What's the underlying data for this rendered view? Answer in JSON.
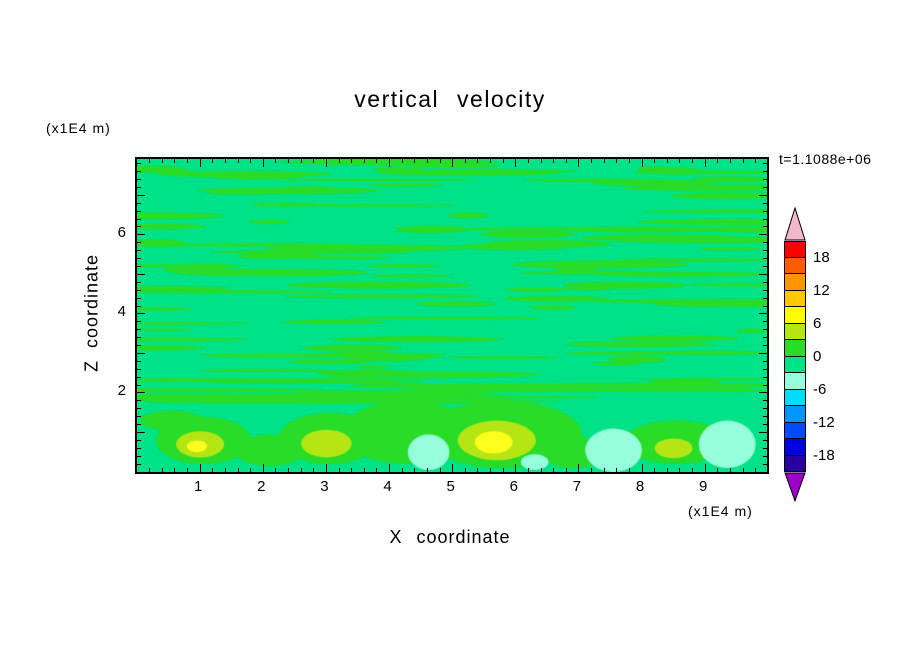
{
  "chart_data": {
    "type": "contour",
    "title": "vertical velocity",
    "annotation": "t=1.1088e+06",
    "xlabel": "X coordinate",
    "x_unit": "(x1E4 m)",
    "ylabel": "Z coordinate",
    "y_unit": "(x1E4 m)",
    "xlim": [
      0,
      9.98
    ],
    "ylim": [
      0,
      7.92
    ],
    "x_major_ticks": [
      1,
      2,
      3,
      4,
      5,
      6,
      7,
      8,
      9
    ],
    "x_tick_labels": [
      "1",
      "2",
      "3",
      "4",
      "5",
      "6",
      "7",
      "8",
      "9"
    ],
    "x_minor_step": 0.2,
    "y_major_ticks": [
      2,
      4,
      6
    ],
    "y_tick_labels": [
      "2",
      "4",
      "6"
    ],
    "y_minor_step": 0.2,
    "contour_interval": 3,
    "colorbar": {
      "labels": [
        "18",
        "12",
        "6",
        "0",
        "-6",
        "-12",
        "-18"
      ],
      "label_values": [
        18,
        12,
        6,
        0,
        -6,
        -12,
        -18
      ],
      "label_after_box": [
        1,
        3,
        5,
        7,
        9,
        11,
        13
      ],
      "over_arrow_color": "#F2B9CC",
      "under_arrow_color": "#9C00C8",
      "boxes_top_to_bottom": [
        {
          "range": [
            18,
            21
          ],
          "color": "#FF0000"
        },
        {
          "range": [
            15,
            18
          ],
          "color": "#FF5A00"
        },
        {
          "range": [
            12,
            15
          ],
          "color": "#FF9600"
        },
        {
          "range": [
            9,
            12
          ],
          "color": "#FFC800"
        },
        {
          "range": [
            6,
            9
          ],
          "color": "#FFFF00"
        },
        {
          "range": [
            3,
            6
          ],
          "color": "#B4E614"
        },
        {
          "range": [
            0,
            3
          ],
          "color": "#28DC28"
        },
        {
          "range": [
            -3,
            0
          ],
          "color": "#00E287"
        },
        {
          "range": [
            -6,
            -3
          ],
          "color": "#96FFDC"
        },
        {
          "range": [
            -9,
            -6
          ],
          "color": "#00DCFF"
        },
        {
          "range": [
            -12,
            -9
          ],
          "color": "#0096FF"
        },
        {
          "range": [
            -15,
            -12
          ],
          "color": "#004BFF"
        },
        {
          "range": [
            -18,
            -15
          ],
          "color": "#0000E1"
        },
        {
          "range": [
            -21,
            -18
          ],
          "color": "#2800A0"
        }
      ]
    },
    "field": {
      "description": "near-zero vertical velocity field: thin horizontal wave streaks aloft, stronger updraft/downdraft cells below z=2e4 m",
      "background": {
        "level_range": [
          -3,
          0
        ],
        "color": "#00E287"
      },
      "streaks": {
        "level_range": [
          0,
          3
        ],
        "color": "#28DC28",
        "seed": 13,
        "count": 130,
        "z_min": 1.65,
        "z_max": 7.85
      },
      "palette": {
        "green": "#28DC28",
        "yellow_green": "#B4E614",
        "yellow": "#FFFF1E",
        "pale_cyan": "#96FFDC"
      },
      "blobs": [
        {
          "x": 0.55,
          "z": 1.3,
          "rx": 0.5,
          "rz": 0.25,
          "level": "green"
        },
        {
          "x": 1.05,
          "z": 0.8,
          "rx": 0.75,
          "rz": 0.6,
          "level": "green"
        },
        {
          "x": 2.1,
          "z": 0.55,
          "rx": 0.55,
          "rz": 0.4,
          "level": "green"
        },
        {
          "x": 3.05,
          "z": 0.85,
          "rx": 0.8,
          "rz": 0.65,
          "level": "green"
        },
        {
          "x": 4.3,
          "z": 1.0,
          "rx": 1.05,
          "rz": 0.8,
          "level": "green"
        },
        {
          "x": 5.8,
          "z": 0.95,
          "rx": 1.25,
          "rz": 0.85,
          "level": "green"
        },
        {
          "x": 6.9,
          "z": 0.5,
          "rx": 0.5,
          "rz": 0.4,
          "level": "green"
        },
        {
          "x": 8.55,
          "z": 0.75,
          "rx": 0.85,
          "rz": 0.55,
          "level": "green"
        },
        {
          "x": 1.0,
          "z": 0.7,
          "rx": 0.38,
          "rz": 0.33,
          "level": "yellow_green"
        },
        {
          "x": 3.0,
          "z": 0.72,
          "rx": 0.4,
          "rz": 0.35,
          "level": "yellow_green"
        },
        {
          "x": 5.7,
          "z": 0.8,
          "rx": 0.62,
          "rz": 0.5,
          "level": "yellow_green"
        },
        {
          "x": 8.5,
          "z": 0.6,
          "rx": 0.3,
          "rz": 0.25,
          "level": "yellow_green"
        },
        {
          "x": 0.95,
          "z": 0.65,
          "rx": 0.16,
          "rz": 0.15,
          "level": "yellow"
        },
        {
          "x": 5.65,
          "z": 0.75,
          "rx": 0.3,
          "rz": 0.28,
          "level": "yellow"
        },
        {
          "x": 4.62,
          "z": 0.5,
          "rx": 0.33,
          "rz": 0.45,
          "level": "pale_cyan"
        },
        {
          "x": 6.3,
          "z": 0.25,
          "rx": 0.22,
          "rz": 0.2,
          "level": "pale_cyan"
        },
        {
          "x": 7.55,
          "z": 0.55,
          "rx": 0.45,
          "rz": 0.55,
          "level": "pale_cyan"
        },
        {
          "x": 9.35,
          "z": 0.7,
          "rx": 0.45,
          "rz": 0.6,
          "level": "pale_cyan"
        }
      ]
    }
  }
}
